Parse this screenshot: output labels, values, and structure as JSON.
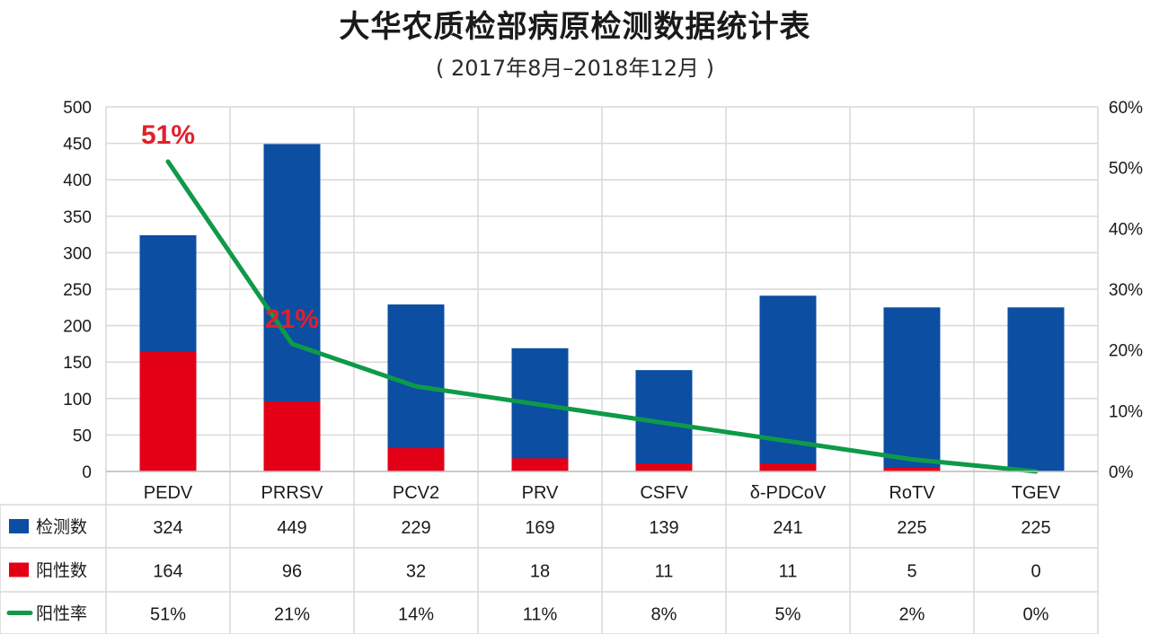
{
  "title": "大华农质检部病原检测数据统计表",
  "subtitle": "( 2017年8月–2018年12月 )",
  "colors": {
    "tested": "#0b4ea2",
    "positive": "#e30016",
    "rate": "#0e9a48",
    "annotation": "#e0202a"
  },
  "chart_data": {
    "type": "bar",
    "stacked": "overlay",
    "categories": [
      "PEDV",
      "PRRSV",
      "PCV2",
      "PRV",
      "CSFV",
      "δ-PDCoV",
      "RoTV",
      "TGEV"
    ],
    "series": [
      {
        "name": "检测数",
        "type": "bar",
        "axis": "left",
        "values": [
          324,
          449,
          229,
          169,
          139,
          241,
          225,
          225
        ]
      },
      {
        "name": "阳性数",
        "type": "bar",
        "axis": "left",
        "values": [
          164,
          96,
          32,
          18,
          11,
          11,
          5,
          0
        ]
      },
      {
        "name": "阳性率",
        "type": "line",
        "axis": "right",
        "values": [
          51,
          21,
          14,
          11,
          8,
          5,
          2,
          0
        ]
      }
    ],
    "left_axis": {
      "ylim": [
        0,
        500
      ],
      "ticks": [
        "0",
        "50",
        "100",
        "150",
        "200",
        "250",
        "300",
        "350",
        "400",
        "450",
        "500"
      ]
    },
    "right_axis": {
      "ylim": [
        0,
        60
      ],
      "ticks": [
        "0%",
        "10%",
        "20%",
        "30%",
        "40%",
        "50%",
        "60%"
      ]
    },
    "table": {
      "rows": [
        {
          "label": "检测数",
          "values": [
            "324",
            "449",
            "229",
            "169",
            "139",
            "241",
            "225",
            "225"
          ]
        },
        {
          "label": "阳性数",
          "values": [
            "164",
            "96",
            "32",
            "18",
            "11",
            "11",
            "5",
            "0"
          ]
        },
        {
          "label": "阳性率",
          "values": [
            "51%",
            "21%",
            "14%",
            "11%",
            "8%",
            "5%",
            "2%",
            "0%"
          ]
        }
      ]
    },
    "annotations": [
      {
        "text": "51%",
        "category": "PEDV",
        "value": 51
      },
      {
        "text": "21%",
        "category": "PRRSV",
        "value": 21
      }
    ],
    "grid": true
  }
}
